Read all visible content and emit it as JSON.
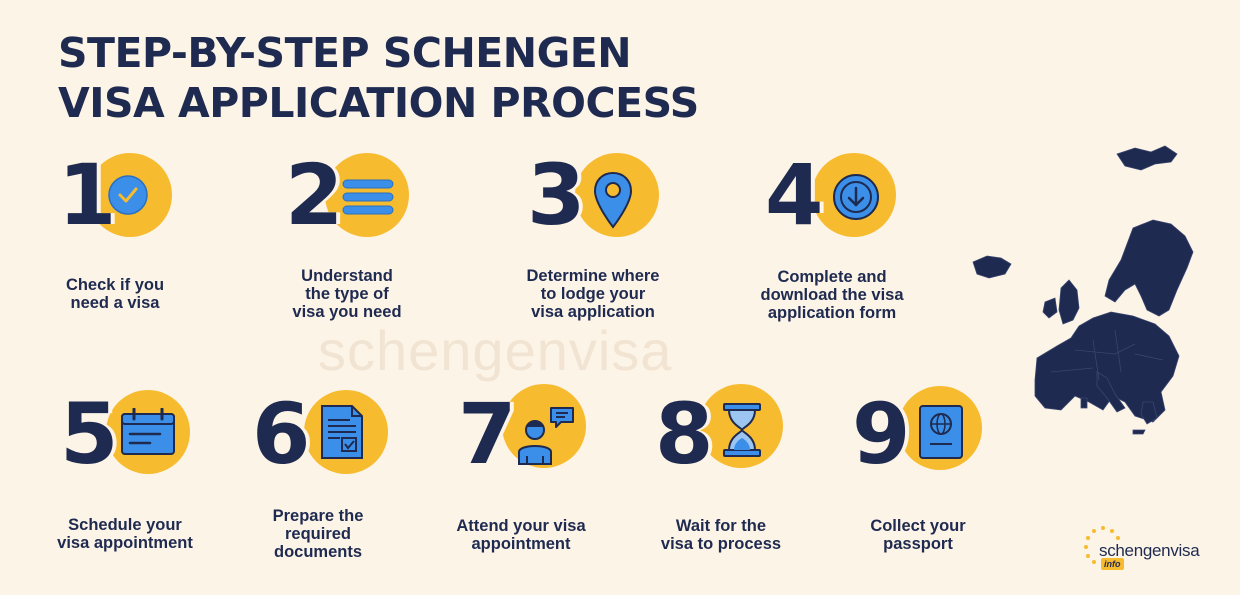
{
  "title_line1": "STEP-BY-STEP SCHENGEN",
  "title_line2": "VISA APPLICATION PROCESS",
  "watermark": "schengenvisa",
  "brand": {
    "name": "schengenvisa",
    "tag": "info"
  },
  "colors": {
    "accent": "#f7bb2f",
    "navy": "#1e2a4f",
    "icon_blue": "#3b8fe8",
    "background": "#fdf4e8"
  },
  "steps": [
    {
      "num": "1",
      "icon": "checkmark-icon",
      "lines": [
        "Check if you",
        "need a visa"
      ]
    },
    {
      "num": "2",
      "icon": "list-icon",
      "lines": [
        "Understand",
        "the type of",
        "visa you need"
      ]
    },
    {
      "num": "3",
      "icon": "location-pin-icon",
      "lines": [
        "Determine where",
        "to lodge your",
        "visa application"
      ]
    },
    {
      "num": "4",
      "icon": "download-icon",
      "lines": [
        "Complete and",
        "download the visa",
        "application form"
      ]
    },
    {
      "num": "5",
      "icon": "calendar-icon",
      "lines": [
        "Schedule your",
        "visa appointment"
      ]
    },
    {
      "num": "6",
      "icon": "document-icon",
      "lines": [
        "Prepare the",
        "required",
        "documents"
      ]
    },
    {
      "num": "7",
      "icon": "person-speech-icon",
      "lines": [
        "Attend your visa",
        "appointment"
      ]
    },
    {
      "num": "8",
      "icon": "hourglass-icon",
      "lines": [
        "Wait for the",
        "visa to process"
      ]
    },
    {
      "num": "9",
      "icon": "passport-icon",
      "lines": [
        "Collect your",
        "passport"
      ]
    }
  ]
}
